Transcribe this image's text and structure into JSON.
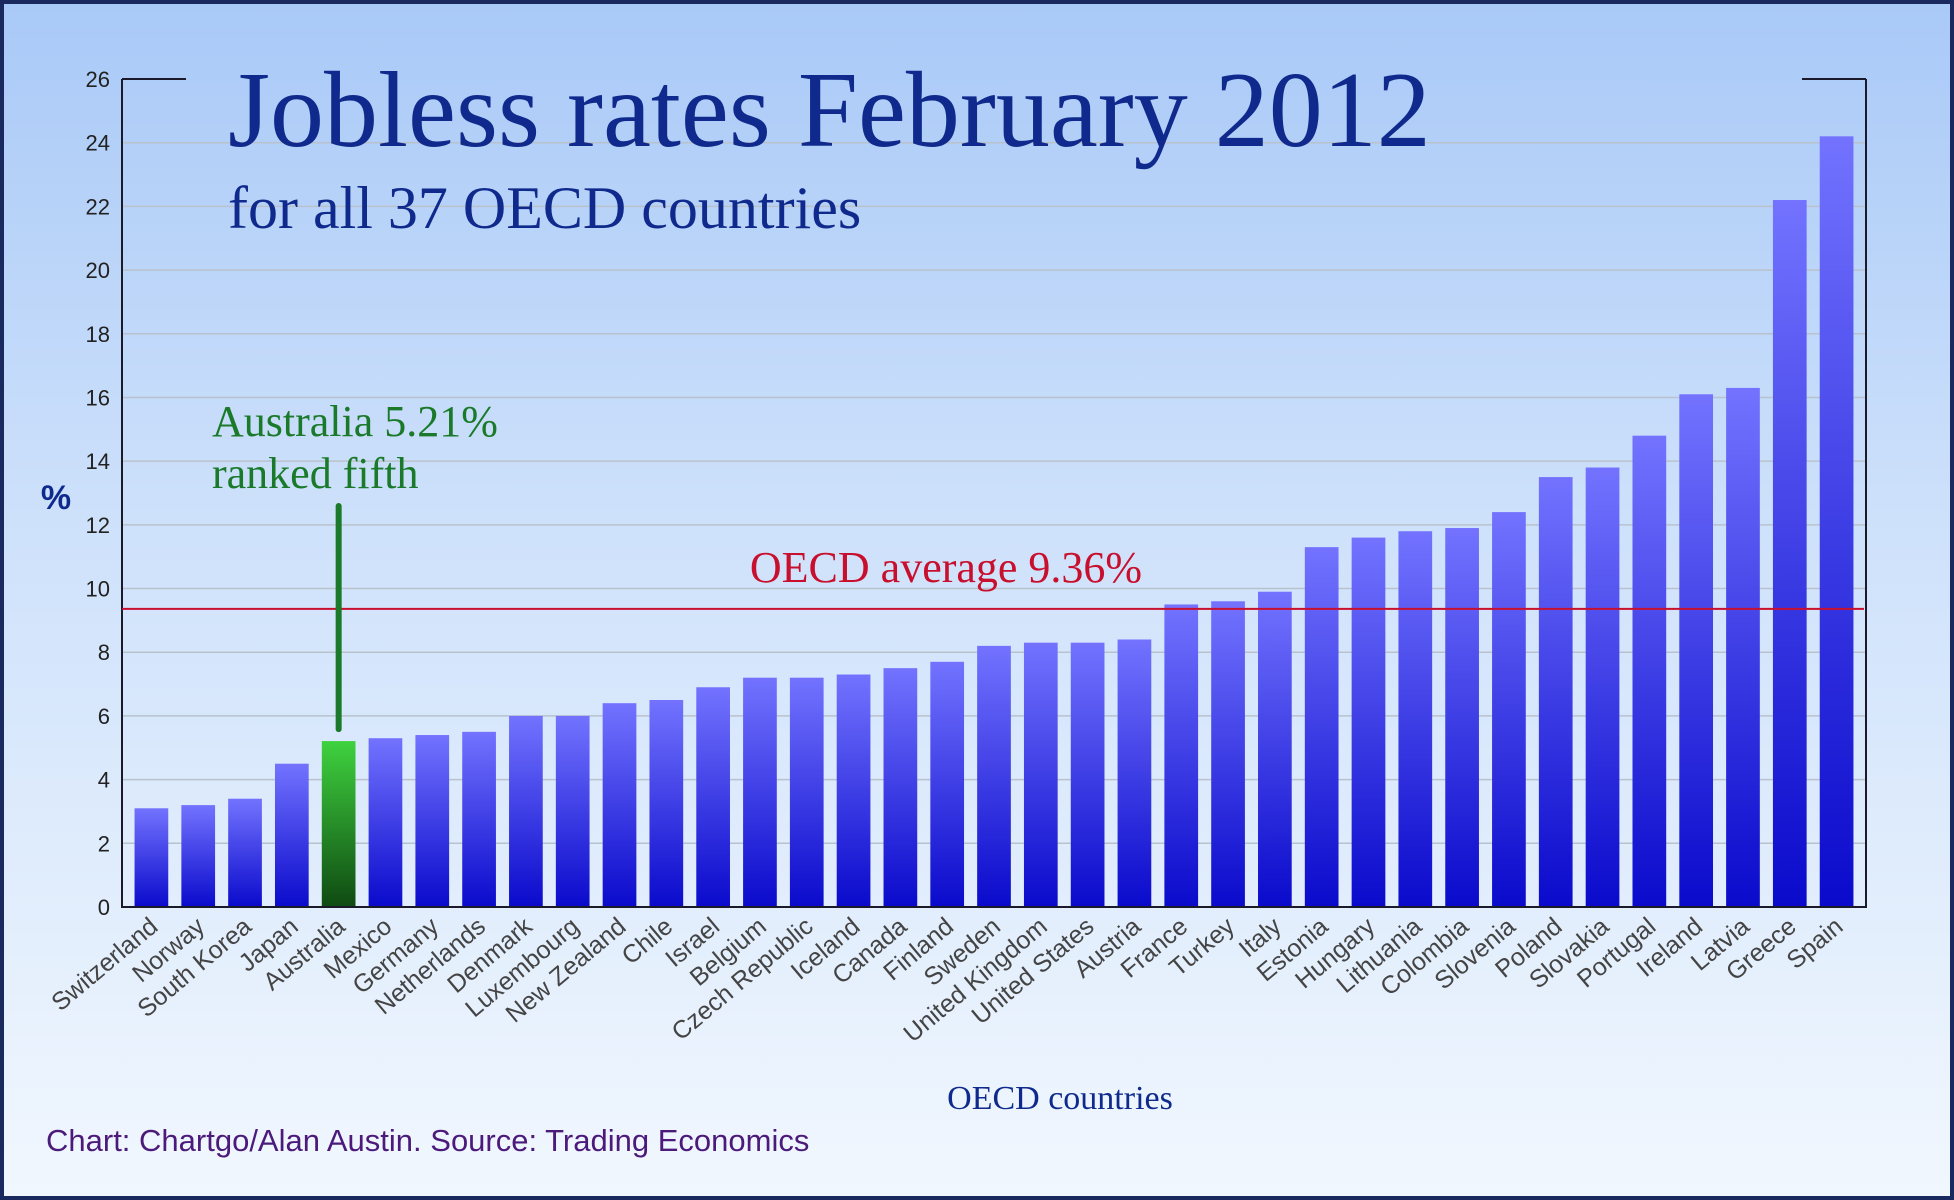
{
  "chart_data": {
    "type": "bar",
    "title": "Jobless rates February 2012",
    "subtitle": "for all 37 OECD countries",
    "xlabel": "OECD countries",
    "ylabel": "%",
    "ylim": [
      0,
      26
    ],
    "yticks": [
      "0",
      "2",
      "4",
      "6",
      "8",
      "10",
      "12",
      "14",
      "16",
      "18",
      "20",
      "22",
      "24",
      "26"
    ],
    "grid": true,
    "categories": [
      "Switzerland",
      "Norway",
      "South Korea",
      "Japan",
      "Australia",
      "Mexico",
      "Germany",
      "Netherlands",
      "Denmark",
      "Luxembourg",
      "New Zealand",
      "Chile",
      "Israel",
      "Belgium",
      "Czech Republic",
      "Iceland",
      "Canada",
      "Finland",
      "Sweden",
      "United Kingdom",
      "United States",
      "Austria",
      "France",
      "Turkey",
      "Italy",
      "Estonia",
      "Hungary",
      "Lithuania",
      "Colombia",
      "Slovenia",
      "Poland",
      "Slovakia",
      "Portugal",
      "Ireland",
      "Latvia",
      "Greece",
      "Spain"
    ],
    "values": [
      3.1,
      3.2,
      3.4,
      4.5,
      5.21,
      5.3,
      5.4,
      5.5,
      6.0,
      6.0,
      6.4,
      6.5,
      6.9,
      7.2,
      7.2,
      7.3,
      7.5,
      7.7,
      8.2,
      8.3,
      8.3,
      8.4,
      9.5,
      9.6,
      9.9,
      11.3,
      11.6,
      11.8,
      11.9,
      12.4,
      13.5,
      13.8,
      14.8,
      16.1,
      16.3,
      22.2,
      24.2
    ],
    "highlight": {
      "category": "Australia",
      "color": "#2db82d"
    },
    "bar_color": "#4a4af2",
    "reference_line": {
      "value": 9.36,
      "label": "OECD average 9.36%",
      "color": "#c8102e"
    },
    "annotation": {
      "line1": "Australia 5.21%",
      "line2": "ranked fifth",
      "color": "#1a7a2a"
    },
    "source": "Chart: Chartgo/Alan Austin. Source: Trading Economics"
  }
}
